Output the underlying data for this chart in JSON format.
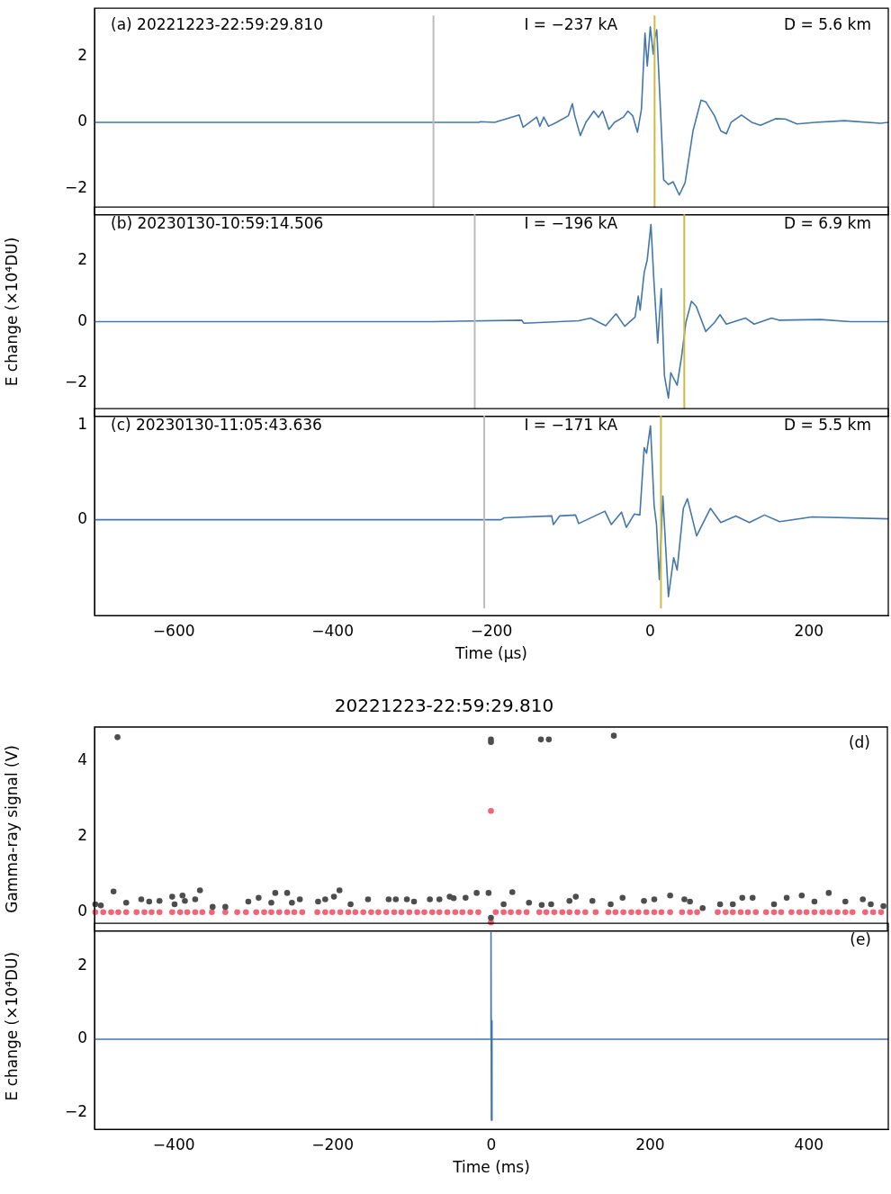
{
  "chart_data": [
    {
      "type": "line",
      "annotations": [
        "(a) 20221223-22:59:29.810",
        "I = −237 kA",
        "D = 5.6 km"
      ],
      "xlim": [
        -700,
        300
      ],
      "xticks": [
        -600,
        -400,
        -200,
        0,
        200
      ],
      "ylim": [
        -2.8,
        3.45
      ],
      "yticks": [
        -2,
        0,
        2
      ],
      "tick_labels": "y",
      "marker": "none",
      "ref_lines": [
        {
          "axis": "x",
          "value": -273,
          "color": "#bbbbbb"
        },
        {
          "axis": "x",
          "value": 5.6,
          "color": "#ccbb44"
        }
      ],
      "series": [
        {
          "color": "#4477aa",
          "x": [
            -700,
            -275,
            -216,
            -214,
            -196,
            -165,
            -160,
            -143,
            -139,
            -134,
            -128,
            -118,
            -103,
            -98,
            -95,
            -88,
            -81,
            -71,
            -65,
            -60,
            -52,
            -45,
            -34,
            -28,
            -22,
            -16,
            -11,
            -6.5,
            -3.6,
            0.2,
            3.9,
            5.6,
            8.3,
            13,
            17,
            23,
            29,
            36.7,
            44,
            54,
            64,
            70,
            81,
            89,
            96,
            102,
            115,
            128,
            139,
            158,
            170,
            185,
            208,
            245,
            290,
            300
          ],
          "values": [
            0,
            0,
            0,
            0.02,
            0,
            0.22,
            -0.15,
            0.16,
            -0.12,
            0.16,
            -0.12,
            0,
            0.2,
            0.56,
            0.2,
            -0.4,
            0,
            0.34,
            0.15,
            0.34,
            -0.21,
            0,
            0.15,
            0.34,
            0.2,
            -0.3,
            0.39,
            2.7,
            1.7,
            2.89,
            2.06,
            2.52,
            2.8,
            0.39,
            -1.74,
            -1.88,
            -1.8,
            -2.2,
            -1.83,
            -0.26,
            0.67,
            0.62,
            0.2,
            -0.26,
            -0.35,
            0,
            0.22,
            0,
            -0.09,
            0.11,
            0.1,
            -0.05,
            0,
            0.05,
            -0.03,
            0
          ]
        }
      ]
    },
    {
      "type": "line",
      "ylabel": "E change (×10⁴DU)",
      "annotations": [
        "(b) 20230130-10:59:14.506",
        "I = −196 kA",
        "D = 6.9 km"
      ],
      "xlim": [
        -700,
        300
      ],
      "xticks": [
        -600,
        -400,
        -200,
        0,
        200
      ],
      "ylim": [
        -3.1,
        3.75
      ],
      "yticks": [
        -2,
        0,
        2
      ],
      "tick_labels": "y",
      "marker": "none",
      "ref_lines": [
        {
          "axis": "x",
          "value": -221,
          "color": "#bbbbbb"
        },
        {
          "axis": "x",
          "value": 43,
          "color": "#ccbb44"
        }
      ],
      "series": [
        {
          "color": "#4477aa",
          "x": [
            -700,
            -275,
            -162,
            -159,
            -90,
            -75,
            -56,
            -43,
            -32,
            -19,
            -15,
            -12.6,
            -7.5,
            -3.7,
            1,
            4.6,
            9.5,
            14,
            18,
            23,
            26,
            34,
            39.5,
            45,
            52,
            58,
            70,
            81,
            88,
            96,
            120,
            131,
            153,
            162,
            215,
            252,
            300
          ],
          "values": [
            0,
            0,
            0.05,
            -0.05,
            0.03,
            0.12,
            -0.13,
            0.26,
            -0.15,
            0.15,
            0.84,
            0.38,
            1.61,
            2.02,
            3.18,
            1.4,
            -0.7,
            1.08,
            -1.77,
            -2.5,
            -1.67,
            -2.08,
            -1.16,
            -0.03,
            0.67,
            0.5,
            -0.32,
            -0.03,
            0.23,
            -0.08,
            0.12,
            -0.08,
            0.12,
            0.05,
            0.07,
            0,
            0
          ]
        }
      ]
    },
    {
      "type": "line",
      "xlabel": "Time (μs)",
      "annotations": [
        "(c) 20230130-11:05:43.636",
        "I = −171 kA",
        "D = 5.5 km"
      ],
      "xlim": [
        -700,
        300
      ],
      "xticks": [
        -600,
        -400,
        -200,
        0,
        200
      ],
      "ylim": [
        -1.01,
        1.17
      ],
      "yticks": [
        0,
        1
      ],
      "marker": "none",
      "ref_lines": [
        {
          "axis": "x",
          "value": -209,
          "color": "#bbbbbb"
        },
        {
          "axis": "x",
          "value": 13.6,
          "color": "#ccbb44"
        }
      ],
      "series": [
        {
          "color": "#4477aa",
          "x": [
            -700,
            -188,
            -184,
            -124,
            -122,
            -114,
            -94,
            -90,
            -57,
            -49,
            -36,
            -30,
            -20,
            -13,
            -7.5,
            -4.5,
            0.4,
            5,
            8,
            11.6,
            16,
            23,
            29.6,
            34,
            41.8,
            47,
            58.5,
            76,
            89,
            108,
            125,
            144,
            163,
            204,
            300
          ],
          "values": [
            0,
            0,
            0.02,
            0.04,
            -0.05,
            0.04,
            0.05,
            -0.04,
            0.09,
            -0.05,
            0.08,
            -0.08,
            0.06,
            0.05,
            0.76,
            0.7,
            0.99,
            0.15,
            -0.05,
            -0.63,
            0.25,
            -0.81,
            -0.4,
            -0.53,
            0.12,
            0.22,
            -0.17,
            0.12,
            -0.03,
            0.04,
            -0.03,
            0.05,
            -0.02,
            0.03,
            0.01
          ]
        }
      ]
    },
    {
      "type": "scatter",
      "title": "20221223-22:59:29.810",
      "ylabel": "Gamma-ray signal (V)",
      "annotations": [
        "(d)"
      ],
      "xlim": [
        -500,
        500
      ],
      "xticks": [
        -400,
        -200,
        0,
        200,
        400
      ],
      "ylim": [
        -0.5,
        4.9
      ],
      "yticks": [
        0,
        2,
        4
      ],
      "tick_labels": "y",
      "marker": "circle",
      "series": [
        {
          "color": "#4d4d4d",
          "x": [
            -499,
            -492,
            -476,
            -460,
            -441,
            -431,
            -418,
            -402,
            -399,
            -389,
            -386,
            -373,
            -367,
            -351,
            -335,
            -306,
            -293,
            -277,
            -272,
            -257,
            -251,
            -241,
            -218,
            -209,
            -198,
            -191,
            -177,
            -155,
            -129,
            -120,
            -106,
            -97,
            -77,
            -65,
            -52,
            -47,
            -32,
            -18,
            -3,
            16,
            27,
            48,
            64,
            76,
            99,
            107,
            128,
            151,
            166,
            193,
            206,
            226,
            244,
            251,
            267,
            289,
            305,
            317,
            330,
            357,
            373,
            392,
            408,
            426,
            447,
            469,
            479,
            495,
            -471,
            0,
            0,
            63,
            73,
            155,
            0
          ],
          "values": [
            0.21,
            0.18,
            0.55,
            0.25,
            0.34,
            0.28,
            0.3,
            0.41,
            0.21,
            0.44,
            0.3,
            0.34,
            0.58,
            0.14,
            0.14,
            0.28,
            0.38,
            0.25,
            0.51,
            0.51,
            0.25,
            0.34,
            0.28,
            0.34,
            0.41,
            0.58,
            0.21,
            0.34,
            0.34,
            0.34,
            0.34,
            0.28,
            0.34,
            0.34,
            0.41,
            0.37,
            0.38,
            0.51,
            0.51,
            0.21,
            0.53,
            0.25,
            0.19,
            0.21,
            0.3,
            0.41,
            0.3,
            0.21,
            0.38,
            0.3,
            0.34,
            0.44,
            0.34,
            0.28,
            0.11,
            0.21,
            0.21,
            0.38,
            0.38,
            0.21,
            0.38,
            0.44,
            0.28,
            0.51,
            0.28,
            0.34,
            0.21,
            0.16,
            4.63,
            4.57,
            4.5,
            4.57,
            4.57,
            4.67,
            -0.15
          ]
        },
        {
          "color": "#ee6677",
          "x": [
            -499,
            -489,
            -479,
            -470,
            -460,
            -447,
            -437,
            -428,
            -418,
            -402,
            -392,
            -383,
            -373,
            -364,
            -352,
            -335,
            -320,
            -309,
            -296,
            -286,
            -277,
            -267,
            -257,
            -248,
            -238,
            -219,
            -209,
            -200,
            -190,
            -180,
            -171,
            -161,
            -151,
            -142,
            -132,
            -122,
            -113,
            -103,
            -93,
            -84,
            -74,
            -65,
            -55,
            -45,
            -36,
            -26,
            -16,
            6,
            16,
            25,
            35,
            45,
            61,
            70,
            80,
            90,
            99,
            109,
            119,
            132,
            148,
            157,
            167,
            177,
            186,
            196,
            206,
            215,
            226,
            241,
            251,
            260,
            286,
            296,
            305,
            315,
            324,
            334,
            347,
            357,
            366,
            379,
            389,
            398,
            408,
            418,
            427,
            437,
            447,
            456,
            472,
            482,
            492,
            0,
            0
          ],
          "values": [
            0,
            0,
            0,
            0,
            0,
            0,
            0,
            0,
            0,
            0,
            0,
            0,
            0,
            0,
            0,
            0,
            0,
            0,
            0,
            0,
            0,
            0,
            0,
            0,
            0,
            0,
            0,
            0,
            0,
            0,
            0,
            0,
            0,
            0,
            0,
            0,
            0,
            0,
            0,
            0,
            0,
            0,
            0,
            0,
            0,
            0,
            0,
            0,
            0,
            0,
            0,
            0,
            0,
            0,
            0,
            0,
            0,
            0,
            0,
            0,
            0,
            0,
            0,
            0,
            0,
            0,
            0,
            0,
            0,
            0,
            0,
            0,
            0,
            0,
            0,
            0,
            0,
            0,
            0,
            0,
            0,
            0,
            0,
            0,
            0,
            0,
            0,
            0,
            0,
            0,
            0,
            0,
            0,
            2.68,
            -0.27
          ]
        }
      ]
    },
    {
      "type": "line",
      "xlabel": "Time (ms)",
      "ylabel": "E change (×10⁴DU)",
      "annotations": [
        "(e)"
      ],
      "xlim": [
        -500,
        500
      ],
      "xticks": [
        -400,
        -200,
        0,
        200,
        400
      ],
      "ylim": [
        -2.45,
        3.15
      ],
      "yticks": [
        -2,
        0,
        2
      ],
      "marker": "none",
      "series": [
        {
          "color": "#4477aa",
          "x": [
            -500,
            -1,
            -0.5,
            0,
            0.5,
            1,
            500
          ],
          "values": [
            0,
            0,
            2.9,
            -2.2,
            0.5,
            0,
            0
          ]
        }
      ]
    }
  ]
}
